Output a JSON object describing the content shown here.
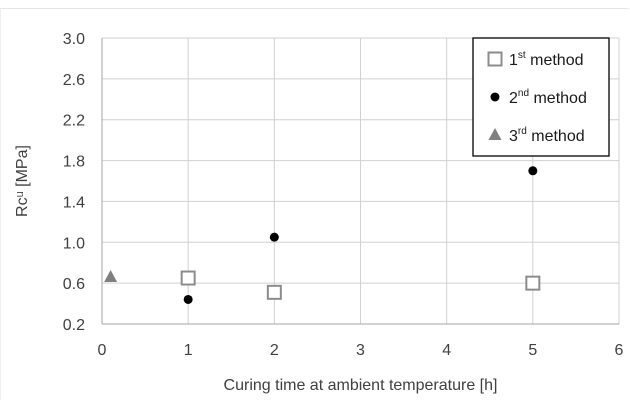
{
  "chart_data": {
    "type": "scatter",
    "xlabel": "Curing time at ambient temperature [h]",
    "ylabel": "Rcᵘ [MPa]",
    "xlim": [
      0,
      6
    ],
    "ylim": [
      0.2,
      3.0
    ],
    "x_ticks": [
      0,
      1,
      2,
      3,
      4,
      5,
      6
    ],
    "y_ticks": [
      "0.2",
      "0.6",
      "1.0",
      "1.4",
      "1.8",
      "2.2",
      "2.6",
      "3.0"
    ],
    "grid": true,
    "legend_position": "top-right",
    "series": [
      {
        "name": "1st method",
        "name_base": "1",
        "name_sup": "st",
        "name_rest": " method",
        "marker": "open-square",
        "color": "#8c8c8c",
        "points": [
          {
            "x": 1,
            "y": 0.65
          },
          {
            "x": 2,
            "y": 0.51
          },
          {
            "x": 5,
            "y": 0.6
          }
        ]
      },
      {
        "name": "2nd method",
        "name_base": "2",
        "name_sup": "nd",
        "name_rest": " method",
        "marker": "filled-circle",
        "color": "#000000",
        "points": [
          {
            "x": 1,
            "y": 0.44
          },
          {
            "x": 2,
            "y": 1.05
          },
          {
            "x": 5,
            "y": 1.7
          }
        ]
      },
      {
        "name": "3rd method",
        "name_base": "3",
        "name_sup": "rd",
        "name_rest": " method",
        "marker": "filled-triangle",
        "color": "#808080",
        "points": [
          {
            "x": 0.1,
            "y": 0.66
          }
        ]
      }
    ]
  }
}
